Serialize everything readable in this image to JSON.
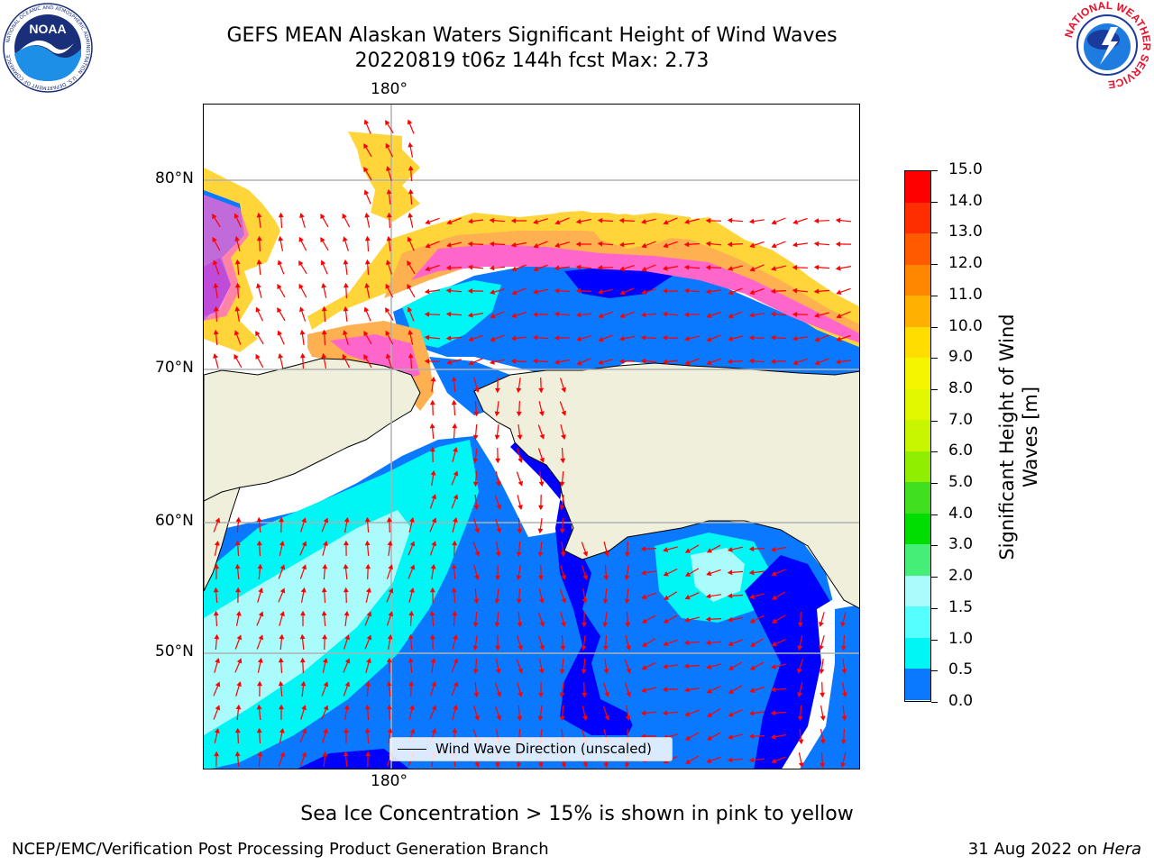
{
  "title": {
    "line1": "GEFS MEAN Alaskan Waters Significant Height of Wind Waves",
    "line2": "20220819 t06z 144h fcst   Max: 2.73"
  },
  "axes": {
    "top_lon_label": "180°",
    "bottom_lon_label": "180°",
    "lat_labels": [
      "80°N",
      "70°N",
      "60°N",
      "50°N"
    ]
  },
  "legend": {
    "label": "Wind Wave Direction (unscaled)"
  },
  "colorbar": {
    "label_line1": "Significant Height of Wind",
    "label_line2": "Waves [m]",
    "ticks": [
      "15.0",
      "14.0",
      "13.0",
      "12.0",
      "11.0",
      "10.0",
      "9.0",
      "8.0",
      "7.0",
      "6.0",
      "5.0",
      "4.0",
      "3.0",
      "2.0",
      "1.5",
      "1.0",
      "0.5",
      "0.0"
    ],
    "colors": [
      "#ff0000",
      "#ff2e00",
      "#ff5a00",
      "#ff8700",
      "#ffb000",
      "#ffdd00",
      "#f5f500",
      "#e2f800",
      "#c8f500",
      "#90ee00",
      "#40e020",
      "#00dd00",
      "#44ee77",
      "#aafcfc",
      "#55ffff",
      "#00f5f5",
      "#0a78ff",
      "#0000ff"
    ]
  },
  "ice_note": "Sea Ice Concentration > 15% is shown in pink to yellow",
  "footer": {
    "left": "NCEP/EMC/Verification Post Processing Product Generation Branch",
    "right_prefix": "31 Aug 2022 on ",
    "right_machine": "Hera"
  },
  "logos": {
    "left": "NOAA",
    "left_ring": "NATIONAL OCEANIC AND ATMOSPHERIC ADMINISTRATION · U.S. DEPARTMENT OF COMMERCE",
    "right_ring": "NATIONAL WEATHER SERVICE"
  },
  "palette": {
    "land": "#efefdc",
    "ice_pink": "#ff66cc",
    "ice_orange": "#ffb050",
    "ice_yellow": "#ffd53a",
    "wave_dark": "#0000ff",
    "wave_mid": "#0a78ff",
    "wave_cyan": "#00f5f5",
    "wave_light": "#aafcfc",
    "arrow": "#ff0000",
    "grid": "#b0b0b0"
  }
}
